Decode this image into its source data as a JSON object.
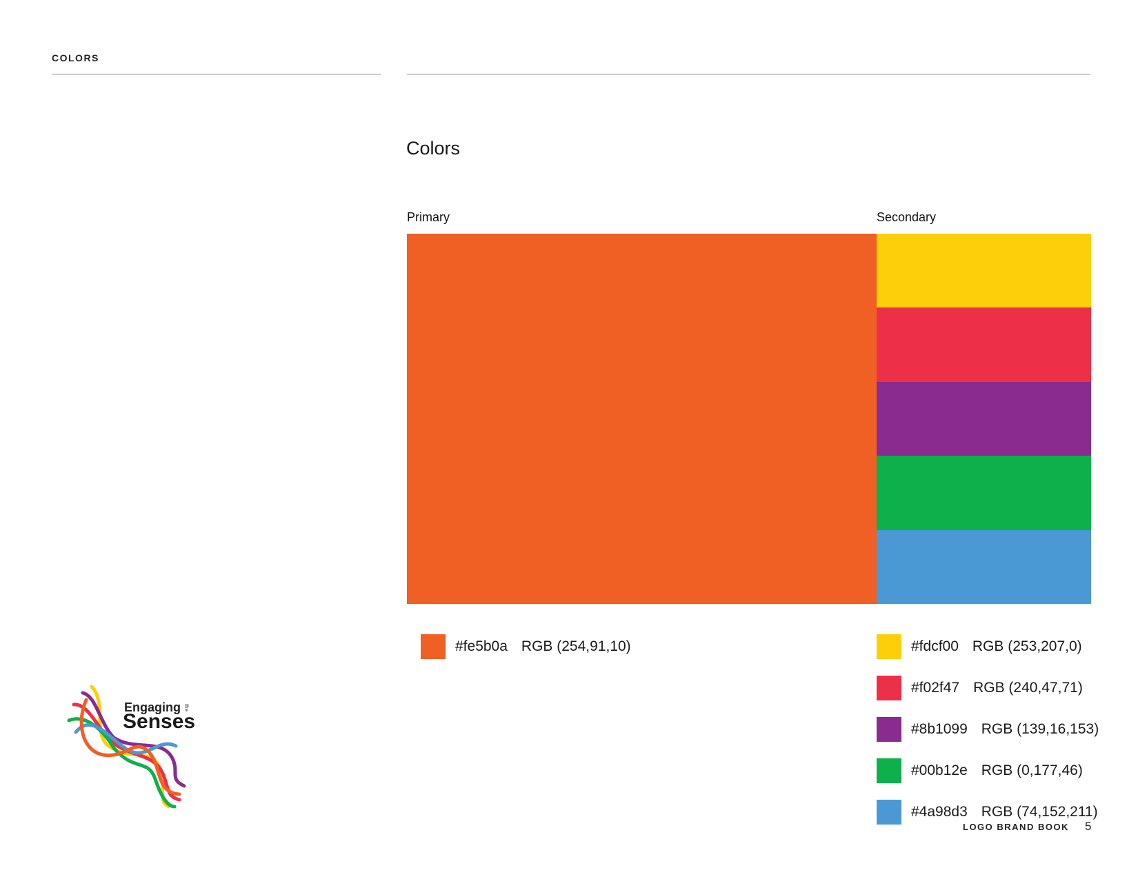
{
  "header": {
    "section_label": "COLORS"
  },
  "page_title": "Colors",
  "primary": {
    "label": "Primary",
    "colors": [
      {
        "hex": "#fe5b0a",
        "rgb": "RGB (254,91,10)",
        "swatch": "#f05f24"
      }
    ]
  },
  "secondary": {
    "label": "Secondary",
    "colors": [
      {
        "hex": "#fdcf00",
        "rgb": "RGB (253,207,0)",
        "swatch": "#fccf0a"
      },
      {
        "hex": "#f02f47",
        "rgb": "RGB (240,47,71)",
        "swatch": "#ee2f48"
      },
      {
        "hex": "#8b1099",
        "rgb": "RGB (139,16,153)",
        "swatch": "#8a2b90"
      },
      {
        "hex": "#00b12e",
        "rgb": "RGB (0,177,46)",
        "swatch": "#0db04b"
      },
      {
        "hex": "#4a98d3",
        "rgb": "RGB (74,152,211)",
        "swatch": "#4b99d4"
      }
    ]
  },
  "logo": {
    "word_1": "Engaging",
    "word_2": "Senses",
    "word_3": "the"
  },
  "footer": {
    "title": "LOGO BRAND BOOK",
    "page_number": "5"
  }
}
